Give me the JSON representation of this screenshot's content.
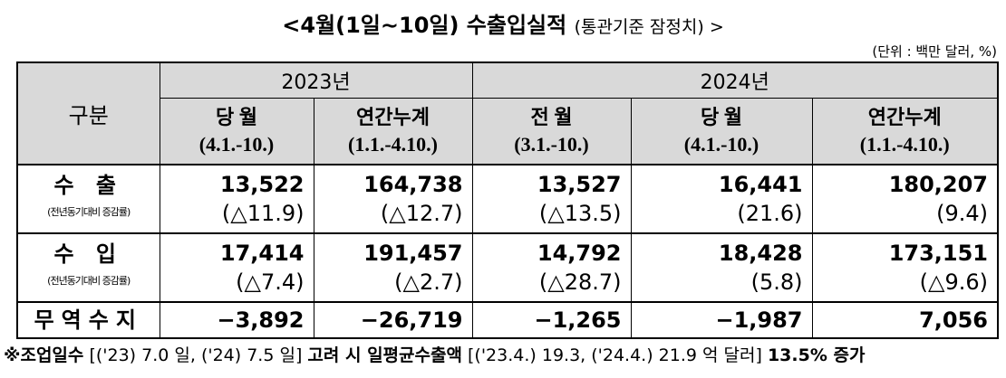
{
  "title": {
    "main": "<4월(1일∼10일) 수출입실적",
    "sub": "(통관기준 잠정치) >"
  },
  "unit": "(단위 : 백만 달러, %)",
  "header": {
    "label": "구분",
    "years": [
      "2023년",
      "2024년"
    ],
    "columns": [
      {
        "name": "당 월",
        "period": "(4.1.-10.)"
      },
      {
        "name": "연간누계",
        "period": "(1.1.-4.10.)"
      },
      {
        "name": "전 월",
        "period": "(3.1.-10.)"
      },
      {
        "name": "당 월",
        "period": "(4.1.-10.)"
      },
      {
        "name": "연간누계",
        "period": "(1.1.-4.10.)"
      }
    ]
  },
  "rows": [
    {
      "label": "수 출",
      "note": "(전년동기대비 증감률)",
      "values": [
        "13,522",
        "164,738",
        "13,527",
        "16,441",
        "180,207"
      ],
      "changes": [
        "(△11.9)",
        "(△12.7)",
        "(△13.5)",
        "(21.6)",
        "(9.4)"
      ]
    },
    {
      "label": "수 입",
      "note": "(전년동기대비 증감률)",
      "values": [
        "17,414",
        "191,457",
        "14,792",
        "18,428",
        "173,151"
      ],
      "changes": [
        "(△7.4)",
        "(△2.7)",
        "(△28.7)",
        "(5.8)",
        "(△9.6)"
      ]
    }
  ],
  "balance": {
    "label": "무역수지",
    "values": [
      "−3,892",
      "−26,719",
      "−1,265",
      "−1,987",
      "7,056"
    ]
  },
  "footnote": [
    "※조업일수",
    " [('23) 7.0 일, ('24) 7.5 일] ",
    "고려 시 일평균수출액",
    " [('23.4.) 19.3, ('24.4.) 21.9 억 달러] ",
    "13.5% 증가"
  ]
}
